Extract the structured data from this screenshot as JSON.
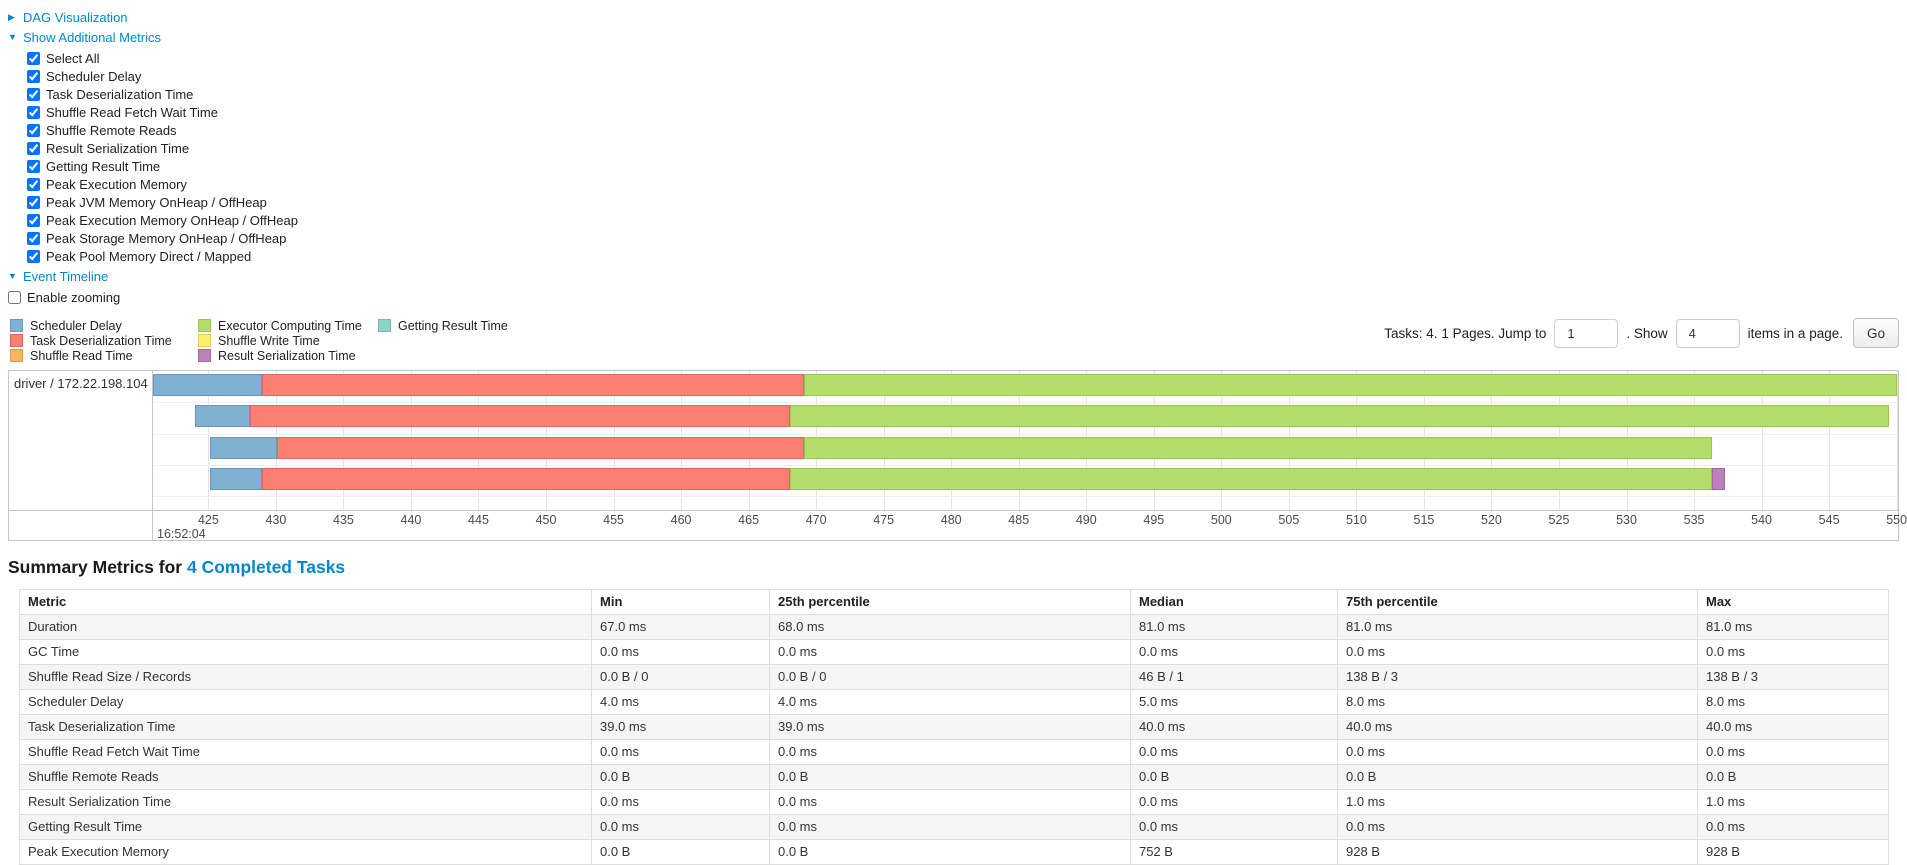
{
  "colors": {
    "link": "#0088cc"
  },
  "controls": {
    "dag": {
      "label": "DAG Visualization",
      "icon": "caret-right"
    },
    "additional_metrics": {
      "label": "Show Additional Metrics",
      "icon": "caret-down"
    },
    "metric_checkboxes": [
      {
        "label": "Select All",
        "checked": true
      },
      {
        "label": "Scheduler Delay",
        "checked": true
      },
      {
        "label": "Task Deserialization Time",
        "checked": true
      },
      {
        "label": "Shuffle Read Fetch Wait Time",
        "checked": true
      },
      {
        "label": "Shuffle Remote Reads",
        "checked": true
      },
      {
        "label": "Result Serialization Time",
        "checked": true
      },
      {
        "label": "Getting Result Time",
        "checked": true
      },
      {
        "label": "Peak Execution Memory",
        "checked": true
      },
      {
        "label": "Peak JVM Memory OnHeap / OffHeap",
        "checked": true
      },
      {
        "label": "Peak Execution Memory OnHeap / OffHeap",
        "checked": true
      },
      {
        "label": "Peak Storage Memory OnHeap / OffHeap",
        "checked": true
      },
      {
        "label": "Peak Pool Memory Direct / Mapped",
        "checked": true
      }
    ],
    "event_timeline": {
      "label": "Event Timeline",
      "icon": "caret-down"
    },
    "enable_zooming": {
      "label": "Enable zooming",
      "checked": false
    }
  },
  "pagination": {
    "prefix": "Tasks: 4. 1 Pages. Jump to",
    "jump_value": "1",
    "mid": ". Show",
    "show_value": "4",
    "suffix": "items in a page.",
    "go_label": "Go"
  },
  "chart_data": {
    "type": "timeline-gantt",
    "group_label": "driver / 172.22.198.104",
    "axis": {
      "unit": "ms",
      "min": 420.9,
      "max": 550.1,
      "tick_start": 425,
      "tick_end": 550,
      "tick_step": 5,
      "major_label": "16:52:04",
      "grid": true
    },
    "segment_colors": {
      "scheduler_delay": {
        "fill": "#80B1D3",
        "border": "#6898BD"
      },
      "task_deserialization": {
        "fill": "#FB8072",
        "border": "#E0685C"
      },
      "shuffle_read": {
        "fill": "#FDB462",
        "border": "#E09A4C"
      },
      "executor_computing": {
        "fill": "#B3DE69",
        "border": "#99C653"
      },
      "shuffle_write": {
        "fill": "#FFED6F",
        "border": "#E3D058"
      },
      "result_serialization": {
        "fill": "#BC80BD",
        "border": "#A367A4"
      },
      "getting_result": {
        "fill": "#8DD3C7",
        "border": "#72BCAF"
      }
    },
    "legend": {
      "columns": [
        [
          {
            "key": "scheduler_delay",
            "label": "Scheduler Delay"
          },
          {
            "key": "task_deserialization",
            "label": "Task Deserialization Time"
          },
          {
            "key": "shuffle_read",
            "label": "Shuffle Read Time"
          }
        ],
        [
          {
            "key": "executor_computing",
            "label": "Executor Computing Time"
          },
          {
            "key": "shuffle_write",
            "label": "Shuffle Write Time"
          },
          {
            "key": "result_serialization",
            "label": "Result Serialization Time"
          }
        ],
        [
          {
            "key": "getting_result",
            "label": "Getting Result Time"
          }
        ]
      ]
    },
    "tasks": [
      {
        "segments": [
          {
            "type": "scheduler_delay",
            "start": 420.9,
            "end": 429.0
          },
          {
            "type": "task_deserialization",
            "start": 429.0,
            "end": 469.1
          },
          {
            "type": "executor_computing",
            "start": 469.1,
            "end": 550.0
          }
        ]
      },
      {
        "segments": [
          {
            "type": "scheduler_delay",
            "start": 424.0,
            "end": 428.1
          },
          {
            "type": "task_deserialization",
            "start": 428.1,
            "end": 468.1
          },
          {
            "type": "executor_computing",
            "start": 468.1,
            "end": 549.4
          }
        ]
      },
      {
        "segments": [
          {
            "type": "scheduler_delay",
            "start": 425.1,
            "end": 430.1
          },
          {
            "type": "task_deserialization",
            "start": 430.1,
            "end": 469.1
          },
          {
            "type": "executor_computing",
            "start": 469.1,
            "end": 536.3
          }
        ]
      },
      {
        "segments": [
          {
            "type": "scheduler_delay",
            "start": 425.1,
            "end": 429.0
          },
          {
            "type": "task_deserialization",
            "start": 429.0,
            "end": 468.1
          },
          {
            "type": "executor_computing",
            "start": 468.1,
            "end": 536.3
          },
          {
            "type": "result_serialization",
            "start": 536.3,
            "end": 537.3
          }
        ]
      }
    ]
  },
  "summary": {
    "title_prefix": "Summary Metrics for",
    "title_link": "4 Completed Tasks",
    "table": {
      "headers": [
        "Metric",
        "Min",
        "25th percentile",
        "Median",
        "75th percentile",
        "Max"
      ],
      "rows": [
        [
          "Duration",
          "67.0 ms",
          "68.0 ms",
          "81.0 ms",
          "81.0 ms",
          "81.0 ms"
        ],
        [
          "GC Time",
          "0.0 ms",
          "0.0 ms",
          "0.0 ms",
          "0.0 ms",
          "0.0 ms"
        ],
        [
          "Shuffle Read Size / Records",
          "0.0 B / 0",
          "0.0 B / 0",
          "46 B / 1",
          "138 B / 3",
          "138 B / 3"
        ],
        [
          "Scheduler Delay",
          "4.0 ms",
          "4.0 ms",
          "5.0 ms",
          "8.0 ms",
          "8.0 ms"
        ],
        [
          "Task Deserialization Time",
          "39.0 ms",
          "39.0 ms",
          "40.0 ms",
          "40.0 ms",
          "40.0 ms"
        ],
        [
          "Shuffle Read Fetch Wait Time",
          "0.0 ms",
          "0.0 ms",
          "0.0 ms",
          "0.0 ms",
          "0.0 ms"
        ],
        [
          "Shuffle Remote Reads",
          "0.0 B",
          "0.0 B",
          "0.0 B",
          "0.0 B",
          "0.0 B"
        ],
        [
          "Result Serialization Time",
          "0.0 ms",
          "0.0 ms",
          "0.0 ms",
          "1.0 ms",
          "1.0 ms"
        ],
        [
          "Getting Result Time",
          "0.0 ms",
          "0.0 ms",
          "0.0 ms",
          "0.0 ms",
          "0.0 ms"
        ],
        [
          "Peak Execution Memory",
          "0.0 B",
          "0.0 B",
          "752 B",
          "928 B",
          "928 B"
        ]
      ]
    }
  }
}
